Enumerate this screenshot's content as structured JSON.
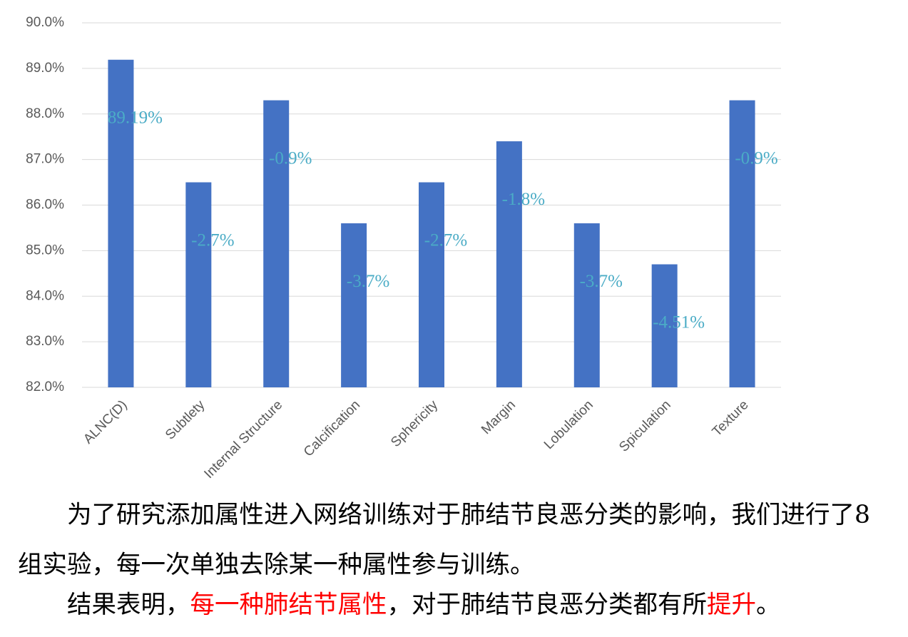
{
  "chart_data": {
    "type": "bar",
    "categories": [
      "ALNC(D)",
      "Subtlety",
      "Internal Structure",
      "Calcification",
      "Sphericity",
      "Margin",
      "Lobulation",
      "Spiculation",
      "Texture"
    ],
    "values": [
      89.19,
      86.5,
      88.3,
      85.6,
      86.5,
      87.4,
      85.6,
      84.7,
      88.3
    ],
    "color": "#4472c4",
    "annotations": [
      "89.19%",
      "-2.7%",
      "-0.9%",
      "-3.7%",
      "-2.7%",
      "-1.8%",
      "-3.7%",
      "-4.51%",
      "-0.9%"
    ],
    "annotation_color": "#4bacc6",
    "ylim": [
      82,
      90
    ],
    "yticks": [
      {
        "value": 82,
        "label": "82.0%"
      },
      {
        "value": 83,
        "label": "83.0%"
      },
      {
        "value": 84,
        "label": "84.0%"
      },
      {
        "value": 85,
        "label": "85.0%"
      },
      {
        "value": 86,
        "label": "86.0%"
      },
      {
        "value": 87,
        "label": "87.0%"
      },
      {
        "value": 88,
        "label": "88.0%"
      },
      {
        "value": 89,
        "label": "89.0%"
      },
      {
        "value": 90,
        "label": "90.0%"
      }
    ],
    "grid": true
  },
  "text": {
    "paragraphs": [
      {
        "segments": [
          {
            "text": "为了研究添加属性进入网络训练对于肺结节良恶分类的影响，我们进行了8组实验，每一次单独去除某一种属性参与训练。",
            "color": "#000000"
          }
        ]
      },
      {
        "segments": [
          {
            "text": "结果表明，",
            "color": "#000000"
          },
          {
            "text": "每一种肺结节属性",
            "color": "#ff0000"
          },
          {
            "text": "，对于肺结节良恶分类都有所",
            "color": "#000000"
          },
          {
            "text": "提升",
            "color": "#ff0000"
          },
          {
            "text": "。",
            "color": "#000000"
          }
        ]
      }
    ]
  }
}
